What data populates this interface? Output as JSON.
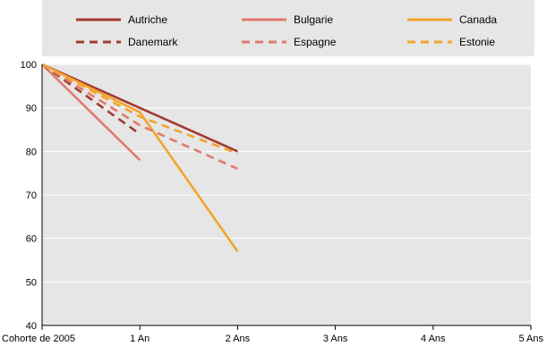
{
  "chart_data": {
    "type": "line",
    "x": [
      "Cohorte de 2005",
      "1 An",
      "2 Ans",
      "3 Ans",
      "4 Ans",
      "5 Ans"
    ],
    "ylim": [
      40,
      100
    ],
    "yticks": [
      40,
      50,
      60,
      70,
      80,
      90,
      100
    ],
    "grid": "horizontal",
    "legend": "top",
    "series": [
      {
        "name": "Autriche",
        "values": [
          100,
          90,
          80,
          null,
          null,
          null
        ],
        "color": "#A23B32",
        "dash": "solid"
      },
      {
        "name": "Bulgarie",
        "values": [
          100,
          78,
          null,
          null,
          null,
          null
        ],
        "color": "#E07A6E",
        "dash": "solid"
      },
      {
        "name": "Canada",
        "values": [
          100,
          89,
          57,
          null,
          null,
          null
        ],
        "color": "#F4A42C",
        "dash": "solid"
      },
      {
        "name": "Danemark",
        "values": [
          100,
          84,
          null,
          null,
          null,
          null
        ],
        "color": "#A23B32",
        "dash": "dashed"
      },
      {
        "name": "Espagne",
        "values": [
          100,
          86,
          76,
          null,
          null,
          null
        ],
        "color": "#E07A6E",
        "dash": "dashed"
      },
      {
        "name": "Estonie",
        "values": [
          100,
          88,
          79.5,
          null,
          null,
          null
        ],
        "color": "#F4A42C",
        "dash": "dashed"
      }
    ]
  }
}
